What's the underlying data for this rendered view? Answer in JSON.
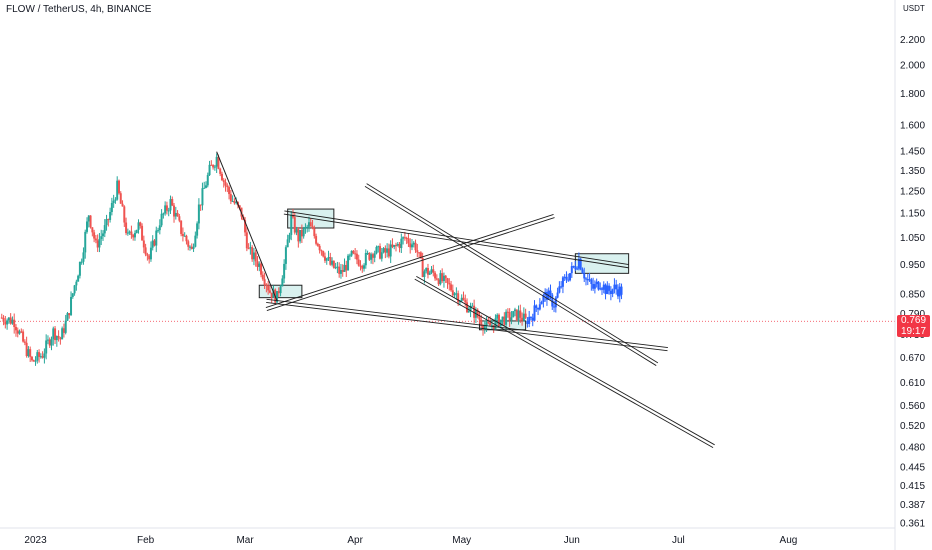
{
  "header": {
    "title": "FLOW / TetherUS, 4h, BINANCE",
    "currency": "USDT"
  },
  "last_price": {
    "value": "0.769",
    "countdown": "19:17",
    "color": "#f23645"
  },
  "colors": {
    "up": "#26a69a",
    "down": "#ef5350",
    "projection": "#2962ff",
    "zone_fill": "#d9f1ef",
    "line": "#1f1f1f"
  },
  "chart_data": {
    "type": "candlestick",
    "y_scale": "log",
    "ylim": [
      0.355,
      2.5
    ],
    "y_ticks": [
      "2.200",
      "2.000",
      "1.800",
      "1.600",
      "1.450",
      "1.350",
      "1.250",
      "1.150",
      "1.050",
      "0.950",
      "0.850",
      "0.790",
      "0.730",
      "0.670",
      "0.610",
      "0.560",
      "0.520",
      "0.480",
      "0.445",
      "0.415",
      "0.387",
      "0.361"
    ],
    "x_ticks": [
      {
        "label": "2023",
        "date": "2023-01-01"
      },
      {
        "label": "Feb",
        "date": "2023-02-01"
      },
      {
        "label": "Mar",
        "date": "2023-03-01"
      },
      {
        "label": "Apr",
        "date": "2023-04-01"
      },
      {
        "label": "May",
        "date": "2023-05-01"
      },
      {
        "label": "Jun",
        "date": "2023-06-01"
      },
      {
        "label": "Jul",
        "date": "2023-07-01"
      },
      {
        "label": "Aug",
        "date": "2023-08-01"
      }
    ],
    "xlim": [
      "2022-12-22",
      "2023-08-31"
    ],
    "price_path": [
      [
        "2022-12-22",
        0.78
      ],
      [
        "2022-12-26",
        0.77
      ],
      [
        "2022-12-29",
        0.7
      ],
      [
        "2022-12-31",
        0.66
      ],
      [
        "2023-01-03",
        0.68
      ],
      [
        "2023-01-06",
        0.74
      ],
      [
        "2023-01-08",
        0.72
      ],
      [
        "2023-01-10",
        0.78
      ],
      [
        "2023-01-12",
        0.88
      ],
      [
        "2023-01-14",
        0.98
      ],
      [
        "2023-01-16",
        1.15
      ],
      [
        "2023-01-18",
        1.02
      ],
      [
        "2023-01-21",
        1.1
      ],
      [
        "2023-01-24",
        1.27
      ],
      [
        "2023-01-27",
        1.05
      ],
      [
        "2023-01-30",
        1.1
      ],
      [
        "2023-02-02",
        0.97
      ],
      [
        "2023-02-05",
        1.12
      ],
      [
        "2023-02-08",
        1.2
      ],
      [
        "2023-02-11",
        1.08
      ],
      [
        "2023-02-14",
        1.0
      ],
      [
        "2023-02-16",
        1.18
      ],
      [
        "2023-02-19",
        1.35
      ],
      [
        "2023-02-21",
        1.42
      ],
      [
        "2023-02-23",
        1.3
      ],
      [
        "2023-02-25",
        1.22
      ],
      [
        "2023-02-28",
        1.15
      ],
      [
        "2023-03-02",
        1.0
      ],
      [
        "2023-03-05",
        0.95
      ],
      [
        "2023-03-08",
        0.86
      ],
      [
        "2023-03-10",
        0.84
      ],
      [
        "2023-03-12",
        0.95
      ],
      [
        "2023-03-14",
        1.13
      ],
      [
        "2023-03-16",
        1.05
      ],
      [
        "2023-03-19",
        1.1
      ],
      [
        "2023-03-22",
        1.02
      ],
      [
        "2023-03-25",
        0.95
      ],
      [
        "2023-03-28",
        0.92
      ],
      [
        "2023-03-31",
        0.98
      ],
      [
        "2023-04-03",
        0.96
      ],
      [
        "2023-04-06",
        1.0
      ],
      [
        "2023-04-09",
        0.99
      ],
      [
        "2023-04-12",
        1.01
      ],
      [
        "2023-04-15",
        1.05
      ],
      [
        "2023-04-18",
        1.02
      ],
      [
        "2023-04-20",
        0.93
      ],
      [
        "2023-04-23",
        0.92
      ],
      [
        "2023-04-26",
        0.89
      ],
      [
        "2023-04-29",
        0.86
      ],
      [
        "2023-05-02",
        0.82
      ],
      [
        "2023-05-05",
        0.79
      ],
      [
        "2023-05-08",
        0.75
      ],
      [
        "2023-05-11",
        0.77
      ],
      [
        "2023-05-14",
        0.78
      ],
      [
        "2023-05-17",
        0.79
      ],
      [
        "2023-05-19",
        0.77
      ]
    ],
    "projection_path": [
      [
        "2023-05-19",
        0.77
      ],
      [
        "2023-05-21",
        0.79
      ],
      [
        "2023-05-23",
        0.83
      ],
      [
        "2023-05-25",
        0.85
      ],
      [
        "2023-05-27",
        0.82
      ],
      [
        "2023-05-29",
        0.88
      ],
      [
        "2023-06-01",
        0.93
      ],
      [
        "2023-06-03",
        0.97
      ],
      [
        "2023-06-05",
        0.9
      ],
      [
        "2023-06-07",
        0.87
      ],
      [
        "2023-06-09",
        0.89
      ],
      [
        "2023-06-11",
        0.86
      ],
      [
        "2023-06-13",
        0.87
      ],
      [
        "2023-06-15",
        0.86
      ]
    ],
    "trendlines": [
      {
        "from": [
          "2023-02-21",
          1.45
        ],
        "to": [
          "2023-03-10",
          0.83
        ]
      },
      {
        "from": [
          "2023-03-07",
          0.805
        ],
        "to": [
          "2023-05-27",
          1.14
        ],
        "double": true
      },
      {
        "from": [
          "2023-03-12",
          1.155
        ],
        "to": [
          "2023-06-17",
          0.945
        ],
        "double": true
      },
      {
        "from": [
          "2023-03-07",
          0.83
        ],
        "to": [
          "2023-06-28",
          0.693
        ],
        "double": true
      },
      {
        "from": [
          "2023-04-04",
          1.28
        ],
        "to": [
          "2023-06-25",
          0.655
        ],
        "double": true
      },
      {
        "from": [
          "2023-04-18",
          0.905
        ],
        "to": [
          "2023-07-11",
          0.482
        ],
        "double": true
      }
    ],
    "zones": [
      {
        "x": [
          "2023-03-05",
          "2023-03-17"
        ],
        "y": [
          0.84,
          0.88
        ]
      },
      {
        "x": [
          "2023-03-13",
          "2023-03-26"
        ],
        "y": [
          1.09,
          1.17
        ]
      },
      {
        "x": [
          "2023-05-06",
          "2023-05-19"
        ],
        "y": [
          0.745,
          0.77
        ]
      },
      {
        "x": [
          "2023-06-02",
          "2023-06-17"
        ],
        "y": [
          0.92,
          0.99
        ]
      }
    ]
  }
}
